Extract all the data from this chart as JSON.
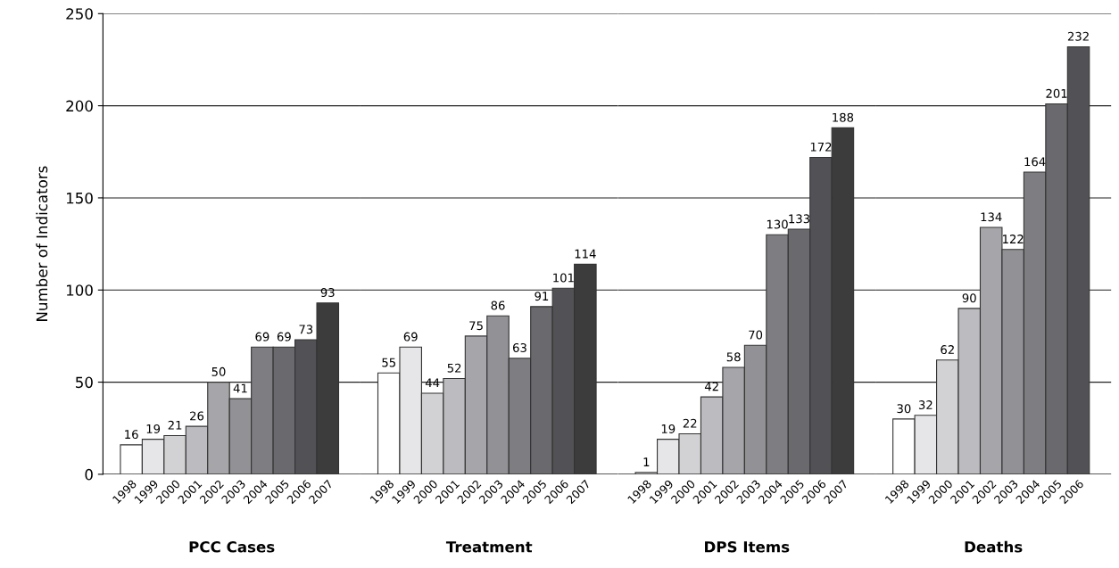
{
  "chart_data": [
    {
      "type": "bar",
      "xlabel": "PCC Cases",
      "ylabel": "Number of Indicators",
      "categories": [
        "1998",
        "1999",
        "2000",
        "2001",
        "2002",
        "2003",
        "2004",
        "2005",
        "2006",
        "2007"
      ],
      "values": [
        16,
        19,
        21,
        26,
        50,
        41,
        69,
        69,
        73,
        93
      ],
      "colors": [
        "#ffffff",
        "#e6e6e8",
        "#d2d2d4",
        "#bcbcc0",
        "#a6a6aa",
        "#929296",
        "#7e7e82",
        "#6a6a6e",
        "#525256",
        "#3c3c3c"
      ],
      "ylim": [
        0,
        250
      ],
      "yticks": [
        0,
        50,
        100,
        150,
        200,
        250
      ],
      "grid": "y",
      "data_labels": true
    },
    {
      "type": "bar",
      "xlabel": "Treatment",
      "categories": [
        "1998",
        "1999",
        "2000",
        "2001",
        "2002",
        "2003",
        "2004",
        "2005",
        "2006",
        "2007"
      ],
      "values": [
        55,
        69,
        44,
        52,
        75,
        86,
        63,
        91,
        101,
        114
      ],
      "colors": [
        "#ffffff",
        "#e6e6e8",
        "#d2d2d4",
        "#bcbcc0",
        "#a6a6aa",
        "#929296",
        "#7e7e82",
        "#6a6a6e",
        "#525256",
        "#3c3c3c"
      ],
      "ylim": [
        0,
        250
      ],
      "yticks": [
        0,
        50,
        100,
        150,
        200,
        250
      ],
      "tick_labels": "x",
      "grid": "y",
      "data_labels": true
    },
    {
      "type": "bar",
      "xlabel": "DPS Items",
      "categories": [
        "1998",
        "1999",
        "2000",
        "2001",
        "2002",
        "2003",
        "2004",
        "2005",
        "2006",
        "2007"
      ],
      "values": [
        1,
        19,
        22,
        42,
        58,
        70,
        130,
        133,
        172,
        188
      ],
      "colors": [
        "#ffffff",
        "#e6e6e8",
        "#d2d2d4",
        "#bcbcc0",
        "#a6a6aa",
        "#929296",
        "#7e7e82",
        "#6a6a6e",
        "#525256",
        "#3c3c3c"
      ],
      "ylim": [
        0,
        250
      ],
      "yticks": [
        0,
        50,
        100,
        150,
        200,
        250
      ],
      "tick_labels": "x",
      "grid": "y",
      "data_labels": true
    },
    {
      "type": "bar",
      "xlabel": "Deaths",
      "categories": [
        "1998",
        "1999",
        "2000",
        "2001",
        "2002",
        "2003",
        "2004",
        "2005",
        "2006"
      ],
      "values": [
        30,
        32,
        62,
        90,
        134,
        122,
        164,
        201,
        232
      ],
      "colors": [
        "#ffffff",
        "#e6e6e8",
        "#d2d2d4",
        "#bcbcc0",
        "#a6a6aa",
        "#929296",
        "#7e7e82",
        "#6a6a6e",
        "#525256"
      ],
      "ylim": [
        0,
        250
      ],
      "yticks": [
        0,
        50,
        100,
        150,
        200,
        250
      ],
      "tick_labels": "x",
      "grid": "y",
      "data_labels": true
    }
  ]
}
